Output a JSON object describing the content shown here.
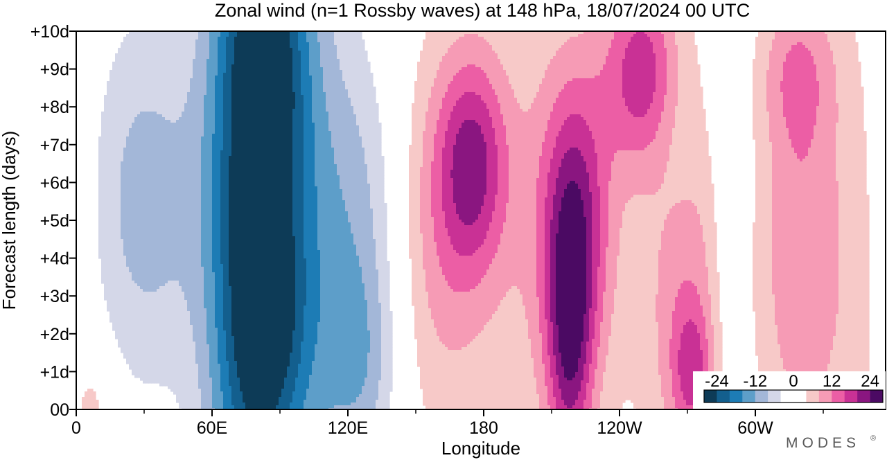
{
  "chart_data": {
    "type": "heatmap",
    "title": "Zonal wind (n=1 Rossby waves) at 148 hPa,  18/07/2024  00 UTC",
    "xlabel": "Longitude",
    "ylabel": "Forecast length (days)",
    "x_ticks": [
      {
        "lon": 0,
        "label": "0"
      },
      {
        "lon": 60,
        "label": "60E"
      },
      {
        "lon": 120,
        "label": "120E"
      },
      {
        "lon": 180,
        "label": "180"
      },
      {
        "lon": 240,
        "label": "120W"
      },
      {
        "lon": 300,
        "label": "60W"
      }
    ],
    "x_minor_ticks": [
      30,
      90,
      150,
      210,
      270,
      330
    ],
    "xlim": [
      0,
      360
    ],
    "y_ticks": [
      {
        "day": 0,
        "label": "00"
      },
      {
        "day": 1,
        "label": "+1d"
      },
      {
        "day": 2,
        "label": "+2d"
      },
      {
        "day": 3,
        "label": "+3d"
      },
      {
        "day": 4,
        "label": "+4d"
      },
      {
        "day": 5,
        "label": "+5d"
      },
      {
        "day": 6,
        "label": "+6d"
      },
      {
        "day": 7,
        "label": "+7d"
      },
      {
        "day": 8,
        "label": "+8d"
      },
      {
        "day": 9,
        "label": "+9d"
      },
      {
        "day": 10,
        "label": "+10d"
      }
    ],
    "ylim": [
      0,
      10
    ],
    "colorbar": {
      "levels": [
        -24,
        -20,
        -16,
        -12,
        -8,
        -4,
        0,
        4,
        8,
        12,
        16,
        20,
        24
      ],
      "colors": [
        "#0d3b57",
        "#135f8e",
        "#1d7cb5",
        "#5d9ec9",
        "#a3b7d8",
        "#d4d7e8",
        "#ffffff",
        "#ffffff",
        "#f7c9c8",
        "#f69bb5",
        "#ec5ea5",
        "#c93195",
        "#8a1680",
        "#4b0a63"
      ],
      "labels": [
        {
          "value": -24,
          "text": "-24"
        },
        {
          "value": -12,
          "text": "-12"
        },
        {
          "value": 0,
          "text": "0"
        },
        {
          "value": 12,
          "text": "12"
        },
        {
          "value": 24,
          "text": "24"
        }
      ]
    },
    "features": [
      {
        "lon": 30,
        "day": 5.5,
        "amp": -10,
        "sx": 18,
        "sy": 3.5
      },
      {
        "lon": 75,
        "day": 5.5,
        "amp": -20,
        "sx": 14,
        "sy": 8
      },
      {
        "lon": 92,
        "day": 5.5,
        "amp": -16,
        "sx": 16,
        "sy": 8
      },
      {
        "lon": 85,
        "day": 9,
        "amp": -6,
        "sx": 10,
        "sy": 1.5
      },
      {
        "lon": 85,
        "day": 2.5,
        "amp": -6,
        "sx": 10,
        "sy": 1.5
      },
      {
        "lon": 125,
        "day": 5,
        "amp": -9,
        "sx": 14,
        "sy": 3.5
      },
      {
        "lon": 125,
        "day": 1,
        "amp": -8,
        "sx": 12,
        "sy": 2
      },
      {
        "lon": 160,
        "day": 4.5,
        "amp": 6,
        "sx": 14,
        "sy": 3.5
      },
      {
        "lon": 175,
        "day": 6.5,
        "amp": 16,
        "sx": 11,
        "sy": 2
      },
      {
        "lon": 220,
        "day": 5,
        "amp": 17,
        "sx": 11,
        "sy": 2.8
      },
      {
        "lon": 218,
        "day": 1.5,
        "amp": 15,
        "sx": 7,
        "sy": 2.5
      },
      {
        "lon": 250,
        "day": 9,
        "amp": 16,
        "sx": 12,
        "sy": 1.8
      },
      {
        "lon": 270,
        "day": 3,
        "amp": 10,
        "sx": 13,
        "sy": 4
      },
      {
        "lon": 272,
        "day": 1,
        "amp": 10,
        "sx": 6,
        "sy": 1.2
      },
      {
        "lon": 318,
        "day": 4,
        "amp": 10,
        "sx": 13,
        "sy": 4
      },
      {
        "lon": 318,
        "day": 9,
        "amp": 8,
        "sx": 12,
        "sy": 1.5
      },
      {
        "lon": 200,
        "day": 4.5,
        "amp": 6,
        "sx": 40,
        "sy": 6
      },
      {
        "lon": 342,
        "day": 4,
        "amp": 5,
        "sx": 16,
        "sy": 6
      },
      {
        "lon": 288,
        "day": 5,
        "amp": -4,
        "sx": 6,
        "sy": 4
      },
      {
        "lon": 265,
        "day": 7.5,
        "amp": -4,
        "sx": 8,
        "sy": 2
      },
      {
        "lon": 8,
        "day": 0,
        "amp": 5,
        "sx": 6,
        "sy": 1
      }
    ]
  },
  "branding": {
    "text": "MODES"
  }
}
